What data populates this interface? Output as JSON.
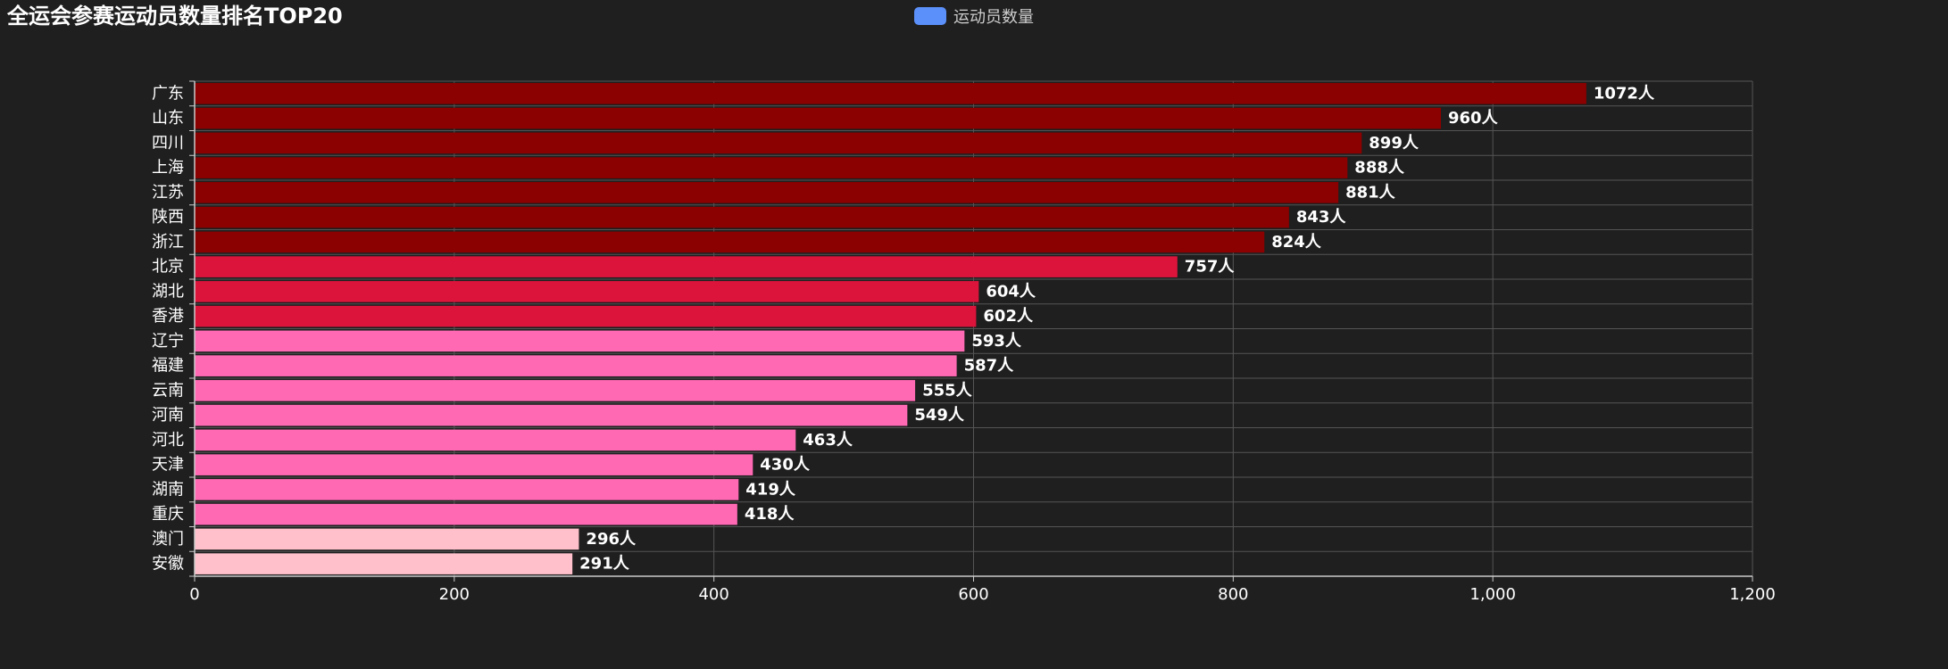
{
  "title": "全运会参赛运动员数量排名TOP20",
  "legend": {
    "label": "运动员数量",
    "color": "#5b8ff9"
  },
  "colors": {
    "background": "#1f1f1f",
    "grid": "#555555",
    "axis": "#cccccc",
    "tier1": "#8b0000",
    "tier2": "#dc143c",
    "tier3": "#ff69b4",
    "tier4": "#ffc0cb"
  },
  "chart_data": {
    "type": "bar",
    "orientation": "horizontal",
    "title": "全运会参赛运动员数量排名TOP20",
    "categories": [
      "广东",
      "山东",
      "四川",
      "上海",
      "江苏",
      "陕西",
      "浙江",
      "北京",
      "湖北",
      "香港",
      "辽宁",
      "福建",
      "云南",
      "河南",
      "河北",
      "天津",
      "湖南",
      "重庆",
      "澳门",
      "安徽"
    ],
    "series": [
      {
        "name": "运动员数量",
        "values": [
          1072,
          960,
          899,
          888,
          881,
          843,
          824,
          757,
          604,
          602,
          593,
          587,
          555,
          549,
          463,
          430,
          419,
          418,
          296,
          291
        ]
      }
    ],
    "value_suffix": "人",
    "xlim": [
      0,
      1200
    ],
    "xticks": [
      0,
      200,
      400,
      600,
      800,
      1000,
      1200
    ],
    "xtick_labels": [
      "0",
      "200",
      "400",
      "600",
      "800",
      "1,000",
      "1,200"
    ],
    "grid": true,
    "legend_position": "top-center"
  }
}
